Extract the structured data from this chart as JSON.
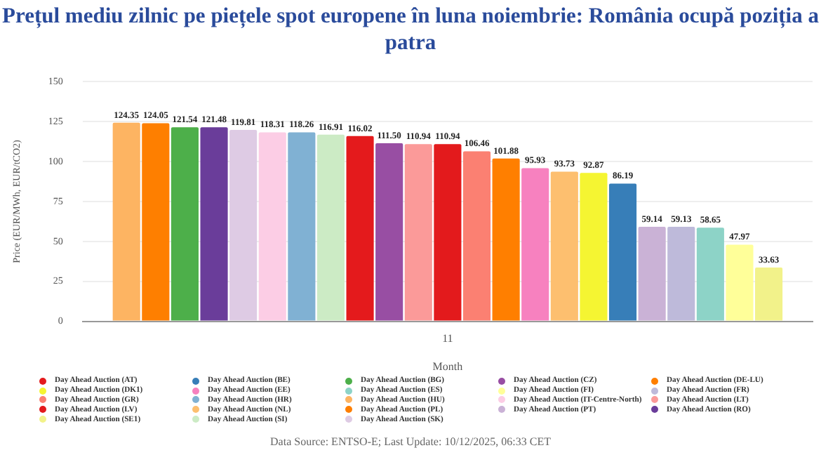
{
  "chart_data": {
    "type": "bar",
    "title": "Prețul mediu zilnic pe piețele spot europene în luna noiembrie: România ocupă poziția a patra",
    "categories": [
      "11"
    ],
    "xlabel": "Month",
    "ylabel": "Price (EUR/MWh, EUR/tCO2)",
    "ylim": [
      0,
      150
    ],
    "yticks": [
      0,
      25,
      50,
      75,
      100,
      125,
      150
    ],
    "grid": "y",
    "legend": "bottom",
    "annotations": [
      "Data Source: ENTSO-E; Last Update: 10/12/2025, 06:33 CET"
    ],
    "series": [
      {
        "name": "Day Ahead Auction (HU)",
        "color": "#fdb462",
        "values": [
          124.35
        ],
        "value_labels": [
          "124.35"
        ]
      },
      {
        "name": "Day Ahead Auction (PL)",
        "color": "#fe7f00",
        "values": [
          124.05
        ],
        "value_labels": [
          "124.05"
        ]
      },
      {
        "name": "Day Ahead Auction (BG)",
        "color": "#4daf4a",
        "values": [
          121.54
        ],
        "value_labels": [
          "121.54"
        ]
      },
      {
        "name": "Day Ahead Auction (RO)",
        "color": "#6a3d9a",
        "values": [
          121.48
        ],
        "value_labels": [
          "121.48"
        ]
      },
      {
        "name": "Day Ahead Auction (SK)",
        "color": "#decbe4",
        "values": [
          119.81
        ],
        "value_labels": [
          "119.81"
        ]
      },
      {
        "name": "Day Ahead Auction (IT-Centre-North)",
        "color": "#fccde5",
        "values": [
          118.31
        ],
        "value_labels": [
          "118.31"
        ]
      },
      {
        "name": "Day Ahead Auction (HR)",
        "color": "#80b1d3",
        "values": [
          118.26
        ],
        "value_labels": [
          "118.26"
        ]
      },
      {
        "name": "Day Ahead Auction (SI)",
        "color": "#ccebc5",
        "values": [
          116.91
        ],
        "value_labels": [
          "116.91"
        ]
      },
      {
        "name": "Day Ahead Auction (AT)",
        "color": "#e41a1c",
        "values": [
          116.02
        ],
        "value_labels": [
          "116.02"
        ]
      },
      {
        "name": "Day Ahead Auction (CZ)",
        "color": "#984ea3",
        "values": [
          111.5
        ],
        "value_labels": [
          "111.50"
        ]
      },
      {
        "name": "Day Ahead Auction (LT)",
        "color": "#fb9a99",
        "values": [
          110.94
        ],
        "value_labels": [
          "110.94"
        ]
      },
      {
        "name": "Day Ahead Auction (LV)",
        "color": "#e31a1c",
        "values": [
          110.94
        ],
        "value_labels": [
          "110.94"
        ]
      },
      {
        "name": "Day Ahead Auction (GR)",
        "color": "#fb8072",
        "values": [
          106.46
        ],
        "value_labels": [
          "106.46"
        ]
      },
      {
        "name": "Day Ahead Auction (DE-LU)",
        "color": "#ff7f00",
        "values": [
          101.88
        ],
        "value_labels": [
          "101.88"
        ]
      },
      {
        "name": "Day Ahead Auction (EE)",
        "color": "#f781bf",
        "values": [
          95.93
        ],
        "value_labels": [
          "95.93"
        ]
      },
      {
        "name": "Day Ahead Auction (NL)",
        "color": "#fdbf6f",
        "values": [
          93.73
        ],
        "value_labels": [
          "93.73"
        ]
      },
      {
        "name": "Day Ahead Auction (DK1)",
        "color": "#f5f532",
        "values": [
          92.87
        ],
        "value_labels": [
          "92.87"
        ]
      },
      {
        "name": "Day Ahead Auction (BE)",
        "color": "#377eb8",
        "values": [
          86.19
        ],
        "value_labels": [
          "86.19"
        ]
      },
      {
        "name": "Day Ahead Auction (PT)",
        "color": "#cab2d6",
        "values": [
          59.14
        ],
        "value_labels": [
          "59.14"
        ]
      },
      {
        "name": "Day Ahead Auction (FR)",
        "color": "#bebada",
        "values": [
          59.13
        ],
        "value_labels": [
          "59.13"
        ]
      },
      {
        "name": "Day Ahead Auction (ES)",
        "color": "#8dd3c7",
        "values": [
          58.65
        ],
        "value_labels": [
          "58.65"
        ]
      },
      {
        "name": "Day Ahead Auction (FI)",
        "color": "#ffff99",
        "values": [
          47.97
        ],
        "value_labels": [
          "47.97"
        ]
      },
      {
        "name": "Day Ahead Auction (SE1)",
        "color": "#f2f28a",
        "values": [
          33.63
        ],
        "value_labels": [
          "33.63"
        ]
      }
    ]
  }
}
